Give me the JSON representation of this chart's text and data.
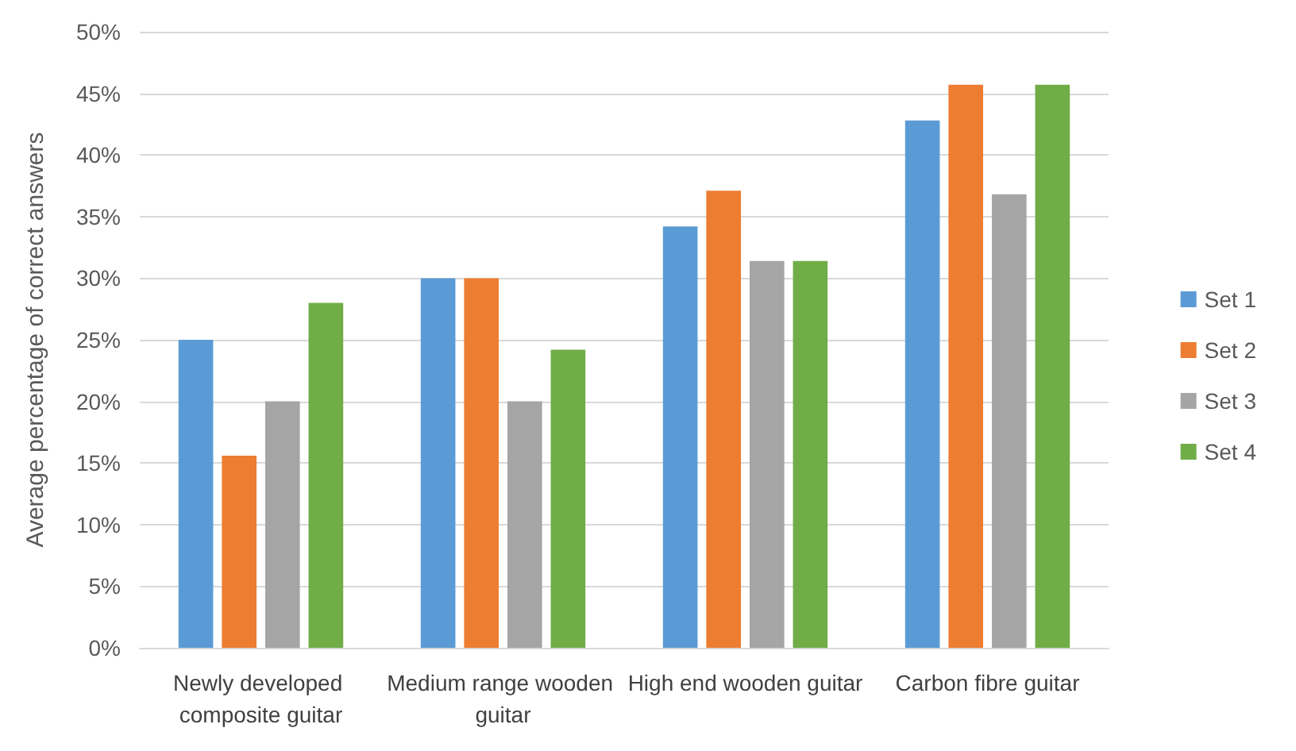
{
  "chart_data": {
    "type": "bar",
    "ylabel": "Average percentage of correct answers",
    "categories": [
      "Newly developed composite guitar",
      "Medium range wooden guitar",
      "High end wooden guitar",
      "Carbon fibre guitar"
    ],
    "series": [
      {
        "name": "Set 1",
        "color": "#5b9bd5",
        "values": [
          25,
          30,
          34.2,
          42.8
        ]
      },
      {
        "name": "Set 2",
        "color": "#ed7d31",
        "values": [
          15.6,
          30,
          37.1,
          45.7
        ]
      },
      {
        "name": "Set 3",
        "color": "#a5a5a5",
        "values": [
          20,
          20,
          31.4,
          36.8
        ]
      },
      {
        "name": "Set 4",
        "color": "#70ad47",
        "values": [
          28,
          24.2,
          31.4,
          45.7
        ]
      }
    ],
    "ylim": [
      0,
      50
    ],
    "yticks": [
      {
        "value": 0,
        "label": "0%"
      },
      {
        "value": 5,
        "label": "5%"
      },
      {
        "value": 10,
        "label": "10%"
      },
      {
        "value": 15,
        "label": "15%"
      },
      {
        "value": 20,
        "label": "20%"
      },
      {
        "value": 25,
        "label": "25%"
      },
      {
        "value": 30,
        "label": "30%"
      },
      {
        "value": 35,
        "label": "35%"
      },
      {
        "value": 40,
        "label": "40%"
      },
      {
        "value": 45,
        "label": "45%"
      },
      {
        "value": 50,
        "label": "50%"
      }
    ],
    "grid": "y",
    "legend": "right"
  }
}
